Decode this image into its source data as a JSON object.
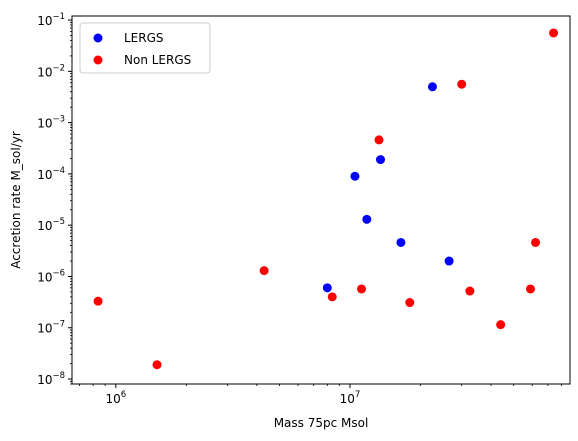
{
  "chart_data": {
    "type": "scatter",
    "title": "",
    "xlabel": "Mass 75pc Msol",
    "ylabel": "Accretion rate M_sol/yr",
    "xscale": "log",
    "yscale": "log",
    "xlim": [
      650000.0,
      87000000.0
    ],
    "ylim": [
      8e-09,
      0.12
    ],
    "grid": false,
    "legend_position": "top-left",
    "x_ticks": [
      {
        "value": 1000000.0,
        "base": "10",
        "exp": "6"
      },
      {
        "value": 10000000.0,
        "base": "10",
        "exp": "7"
      }
    ],
    "y_ticks": [
      {
        "value": 1e-08,
        "base": "10",
        "exp": "−8"
      },
      {
        "value": 1e-07,
        "base": "10",
        "exp": "−7"
      },
      {
        "value": 1e-06,
        "base": "10",
        "exp": "−6"
      },
      {
        "value": 1e-05,
        "base": "10",
        "exp": "−5"
      },
      {
        "value": 0.0001,
        "base": "10",
        "exp": "−4"
      },
      {
        "value": 0.001,
        "base": "10",
        "exp": "−3"
      },
      {
        "value": 0.01,
        "base": "10",
        "exp": "−2"
      },
      {
        "value": 0.1,
        "base": "10",
        "exp": "−1"
      }
    ],
    "series": [
      {
        "name": "LERGS",
        "color": "#0000ff",
        "points": [
          {
            "x": 8000000.0,
            "y": 6e-07
          },
          {
            "x": 10500000.0,
            "y": 9e-05
          },
          {
            "x": 11800000.0,
            "y": 1.3e-05
          },
          {
            "x": 13500000.0,
            "y": 0.00019
          },
          {
            "x": 16500000.0,
            "y": 4.6e-06
          },
          {
            "x": 22500000.0,
            "y": 0.005
          },
          {
            "x": 26500000.0,
            "y": 2e-06
          }
        ]
      },
      {
        "name": "Non LERGS",
        "color": "#ff0000",
        "points": [
          {
            "x": 840000.0,
            "y": 3.3e-07
          },
          {
            "x": 1500000.0,
            "y": 1.9e-08
          },
          {
            "x": 4300000.0,
            "y": 1.3e-06
          },
          {
            "x": 8400000.0,
            "y": 4e-07
          },
          {
            "x": 11200000.0,
            "y": 5.7e-07
          },
          {
            "x": 13300000.0,
            "y": 0.00046
          },
          {
            "x": 18000000.0,
            "y": 3.1e-07
          },
          {
            "x": 30000000.0,
            "y": 0.0056
          },
          {
            "x": 32500000.0,
            "y": 5.2e-07
          },
          {
            "x": 44000000.0,
            "y": 1.15e-07
          },
          {
            "x": 59000000.0,
            "y": 5.7e-07
          },
          {
            "x": 62000000.0,
            "y": 4.6e-06
          },
          {
            "x": 74000000.0,
            "y": 0.056
          }
        ]
      }
    ]
  }
}
